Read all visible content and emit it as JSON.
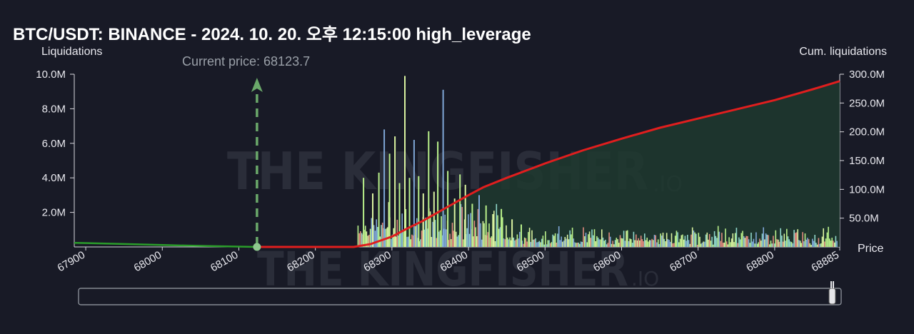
{
  "chart_data": {
    "type": "bar",
    "title": "BTC/USDT: BINANCE - 2024. 10. 20. 오후 12:15:00 high_leverage",
    "watermark": {
      "brand": "THE KINGFISHER",
      "suffix": ".IO"
    },
    "y_left": {
      "label": "Liquidations",
      "ticks": [
        "2.0M",
        "4.0M",
        "6.0M",
        "8.0M",
        "10.0M"
      ],
      "tick_values": [
        2000000,
        4000000,
        6000000,
        8000000,
        10000000
      ],
      "range": [
        0,
        10000000
      ]
    },
    "y_right": {
      "label": "Cum. liquidations",
      "ticks": [
        "50.0M",
        "100.0M",
        "150.0M",
        "200.0M",
        "250.0M",
        "300.0M"
      ],
      "tick_values": [
        50000000,
        100000000,
        150000000,
        200000000,
        250000000,
        300000000
      ],
      "range": [
        0,
        300000000
      ]
    },
    "x_axis": {
      "label": "Price",
      "range": [
        67885,
        68885
      ],
      "ticks": [
        "67900",
        "68000",
        "68100",
        "68200",
        "68300",
        "68400",
        "68500",
        "68600",
        "68700",
        "68800",
        "68885"
      ],
      "tick_values": [
        67900,
        68000,
        68100,
        68200,
        68300,
        68400,
        68500,
        68600,
        68700,
        68800,
        68885
      ]
    },
    "current_price": {
      "label": "Current price: 68123.7",
      "value": 68123.7
    },
    "bar_colors": [
      "#b9f08a",
      "#7fa6d6",
      "#e08a7e",
      "#8fd6c9",
      "#d9f2a0"
    ],
    "bars_tall": [
      {
        "x": 68262,
        "v": 4000000
      },
      {
        "x": 68274,
        "v": 3100000
      },
      {
        "x": 68282,
        "v": 4300000
      },
      {
        "x": 68289,
        "v": 6800000
      },
      {
        "x": 68296,
        "v": 5400000
      },
      {
        "x": 68303,
        "v": 6400000
      },
      {
        "x": 68309,
        "v": 3700000
      },
      {
        "x": 68316,
        "v": 9900000
      },
      {
        "x": 68322,
        "v": 4000000
      },
      {
        "x": 68328,
        "v": 6200000
      },
      {
        "x": 68334,
        "v": 4100000
      },
      {
        "x": 68340,
        "v": 3100000
      },
      {
        "x": 68347,
        "v": 6700000
      },
      {
        "x": 68354,
        "v": 3200000
      },
      {
        "x": 68359,
        "v": 6100000
      },
      {
        "x": 68366,
        "v": 9100000
      },
      {
        "x": 68372,
        "v": 4400000
      },
      {
        "x": 68381,
        "v": 2800000
      },
      {
        "x": 68388,
        "v": 4200000
      },
      {
        "x": 68395,
        "v": 3600000
      },
      {
        "x": 68404,
        "v": 2500000
      },
      {
        "x": 68413,
        "v": 3000000
      },
      {
        "x": 68422,
        "v": 2400000
      },
      {
        "x": 68431,
        "v": 1900000
      },
      {
        "x": 68442,
        "v": 2200000
      },
      {
        "x": 68456,
        "v": 1600000
      },
      {
        "x": 68468,
        "v": 1300000
      }
    ],
    "left_liq": {
      "color": "#2a9d2a",
      "x": [
        67885,
        67950,
        68000,
        68060,
        68123.7
      ],
      "v": [
        240000,
        170000,
        110000,
        50000,
        0
      ]
    },
    "cumulative": {
      "color": "#e01e1e",
      "x": [
        68123.7,
        68250,
        68272,
        68300,
        68320,
        68340,
        68360,
        68380,
        68400,
        68420,
        68450,
        68480,
        68500,
        68550,
        68600,
        68650,
        68700,
        68750,
        68800,
        68850,
        68885
      ],
      "v": [
        0,
        0,
        5000000,
        18000000,
        32000000,
        45000000,
        60000000,
        75000000,
        90000000,
        104000000,
        120000000,
        135000000,
        145000000,
        168000000,
        188000000,
        207000000,
        223000000,
        239000000,
        255000000,
        274000000,
        288000000
      ]
    }
  }
}
